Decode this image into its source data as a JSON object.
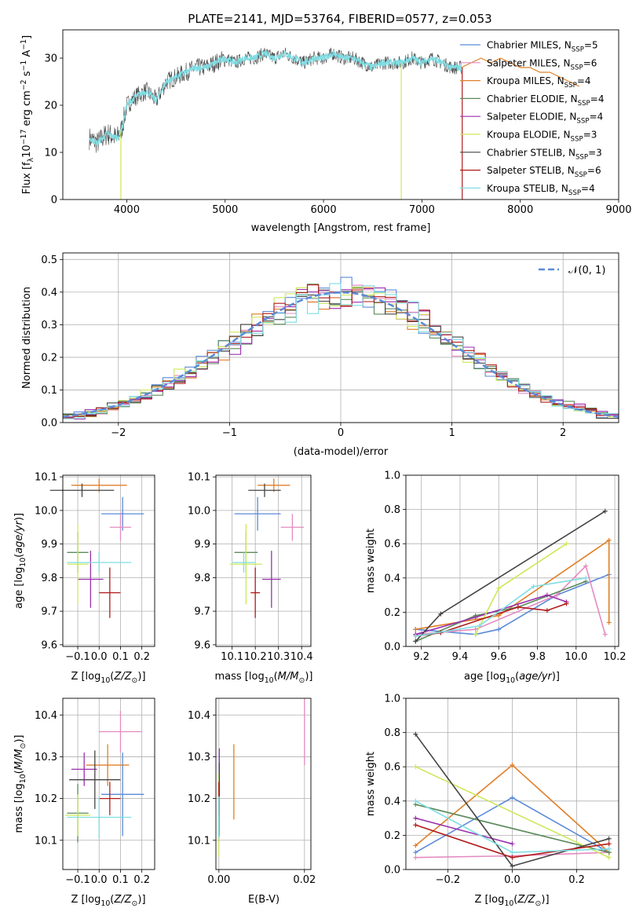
{
  "colors": {
    "Chabrier MILES": "#5b8ad8",
    "Salpeter MILES": "#e38bc0",
    "Kroupa MILES": "#e07f28",
    "Chabrier ELODIE": "#5a8a5a",
    "Salpeter ELODIE": "#9b2fae",
    "Kroupa ELODIE": "#cde85a",
    "Chabrier STELIB": "#444444",
    "Salpeter STELIB": "#b11a1a",
    "Kroupa STELIB": "#7fdde3",
    "normal": "#5b8ad8",
    "grid": "#b0b0b0"
  },
  "chart_data": [
    {
      "id": "spectrum",
      "type": "line",
      "title": "PLATE=2141, MJD=53764, FIBERID=0577, z=0.053",
      "xlabel": "wavelength [Angstrom, rest frame]",
      "ylabel": "Flux [f",
      "ylabel_parts": [
        "Flux [f",
        "λ",
        "10",
        "−17",
        " erg cm",
        "−2",
        " s",
        "−1",
        " A",
        "−1",
        "]"
      ],
      "xlim": [
        3350,
        9000
      ],
      "ylim": [
        0,
        36
      ],
      "xticks": [
        4000,
        5000,
        6000,
        7000,
        8000,
        9000
      ],
      "yticks": [
        0,
        10,
        20,
        30
      ],
      "grid": false,
      "legend_placement": "upper-right",
      "x": [
        3620,
        3700,
        3800,
        3900,
        3950,
        4000,
        4100,
        4200,
        4300,
        4400,
        4500,
        4600,
        4700,
        4800,
        4900,
        5000,
        5100,
        5200,
        5300,
        5400,
        5500,
        5600,
        5700,
        5800,
        5900,
        6000,
        6100,
        6200,
        6300,
        6400,
        6500,
        6600,
        6700,
        6800,
        6900,
        7000,
        7100,
        7200,
        7300,
        7400
      ],
      "y": [
        13,
        12,
        14,
        13,
        15,
        20,
        22,
        23,
        21,
        25,
        26,
        27,
        28,
        28,
        29,
        30,
        29,
        30,
        30,
        31,
        30,
        31,
        30,
        29,
        30,
        30,
        31,
        30,
        30,
        29,
        28,
        29,
        29,
        29,
        30,
        29,
        30,
        29,
        28,
        28
      ],
      "model_x": [
        7400,
        7500,
        7600,
        7700,
        7800,
        7900,
        8000,
        8100,
        8200,
        8300,
        8400,
        8500,
        8600
      ],
      "model_y": [
        28,
        29,
        30,
        29,
        30,
        29,
        28,
        28,
        27,
        27,
        26,
        25,
        24
      ],
      "series": [
        {
          "name": "Chabrier MILES",
          "nssp": "5"
        },
        {
          "name": "Salpeter MILES",
          "nssp": "6"
        },
        {
          "name": "Kroupa MILES",
          "nssp": "4"
        },
        {
          "name": "Chabrier ELODIE",
          "nssp": "4"
        },
        {
          "name": "Salpeter ELODIE",
          "nssp": "4"
        },
        {
          "name": "Kroupa ELODIE",
          "nssp": "3"
        },
        {
          "name": "Chabrier STELIB",
          "nssp": "3"
        },
        {
          "name": "Salpeter STELIB",
          "nssp": "6"
        },
        {
          "name": "Kroupa STELIB",
          "nssp": "4"
        }
      ],
      "nssp_prefix": "N",
      "nssp_sub": "SSP"
    },
    {
      "id": "residuals",
      "type": "histogram",
      "xlabel": "(data-model)/error",
      "ylabel": "Normed distribution",
      "xlim": [
        -2.5,
        2.5
      ],
      "ylim": [
        0,
        0.52
      ],
      "xticks": [
        -2,
        -1,
        0,
        1,
        2
      ],
      "yticks": [
        0.0,
        0.1,
        0.2,
        0.3,
        0.4,
        0.5
      ],
      "grid": true,
      "legend": "𝒩(0, 1)",
      "legend_placement": "top-right",
      "bin_width": 0.1
    },
    {
      "id": "age_vs_Z",
      "type": "errorbar",
      "xlabel": "Z [log",
      "ylabel": "age  [log",
      "xlim": [
        -0.17,
        0.26
      ],
      "ylim": [
        9.595,
        10.105
      ],
      "xticks": [
        -0.1,
        0.0,
        0.1,
        0.2
      ],
      "xtick_labels": [
        "−0.1",
        "0.0",
        "0.1",
        "0.2"
      ],
      "yticks": [
        9.6,
        9.7,
        9.8,
        9.9,
        10.0,
        10.1
      ],
      "grid": true,
      "points": [
        {
          "name": "Chabrier MILES",
          "x": 0.11,
          "xerr": 0.1,
          "y": 9.99,
          "yerr": 0.05
        },
        {
          "name": "Salpeter MILES",
          "x": 0.1,
          "xerr": 0.05,
          "y": 9.95,
          "yerr": 0.04
        },
        {
          "name": "Kroupa MILES",
          "x": 0.0,
          "xerr": 0.13,
          "y": 10.075,
          "yerr": 0.02
        },
        {
          "name": "Chabrier ELODIE",
          "x": -0.1,
          "xerr": 0.05,
          "y": 9.875,
          "yerr": 0.06
        },
        {
          "name": "Salpeter ELODIE",
          "x": -0.04,
          "xerr": 0.06,
          "y": 9.795,
          "yerr": 0.085
        },
        {
          "name": "Kroupa ELODIE",
          "x": -0.1,
          "xerr": 0.05,
          "y": 9.84,
          "yerr": 0.12
        },
        {
          "name": "Chabrier STELIB",
          "x": -0.08,
          "xerr": 0.15,
          "y": 10.06,
          "yerr": 0.02
        },
        {
          "name": "Salpeter STELIB",
          "x": 0.05,
          "xerr": 0.05,
          "y": 9.755,
          "yerr": 0.075
        },
        {
          "name": "Kroupa STELIB",
          "x": 0.0,
          "xerr": 0.15,
          "y": 9.845,
          "yerr": 0.03
        }
      ]
    },
    {
      "id": "age_vs_mass",
      "type": "errorbar",
      "xlabel": "mass [log",
      "xlim": [
        10.03,
        10.44
      ],
      "ylim": [
        9.595,
        10.105
      ],
      "xticks": [
        10.1,
        10.2,
        10.3,
        10.4
      ],
      "yticks": [
        9.6,
        9.7,
        9.8,
        9.9,
        10.0,
        10.1
      ],
      "grid": true,
      "points": [
        {
          "name": "Chabrier MILES",
          "x": 10.21,
          "xerr": 0.1,
          "y": 9.99,
          "yerr": 0.05
        },
        {
          "name": "Salpeter MILES",
          "x": 10.36,
          "xerr": 0.05,
          "y": 9.95,
          "yerr": 0.04
        },
        {
          "name": "Kroupa MILES",
          "x": 10.28,
          "xerr": 0.07,
          "y": 10.075,
          "yerr": 0.02
        },
        {
          "name": "Chabrier ELODIE",
          "x": 10.16,
          "xerr": 0.05,
          "y": 9.875,
          "yerr": 0.06
        },
        {
          "name": "Salpeter ELODIE",
          "x": 10.27,
          "xerr": 0.04,
          "y": 9.795,
          "yerr": 0.085
        },
        {
          "name": "Kroupa ELODIE",
          "x": 10.16,
          "xerr": 0.07,
          "y": 9.84,
          "yerr": 0.12
        },
        {
          "name": "Chabrier STELIB",
          "x": 10.24,
          "xerr": 0.07,
          "y": 10.06,
          "yerr": 0.02
        },
        {
          "name": "Salpeter STELIB",
          "x": 10.2,
          "xerr": 0.02,
          "y": 9.755,
          "yerr": 0.075
        },
        {
          "name": "Kroupa STELIB",
          "x": 10.15,
          "xerr": 0.05,
          "y": 9.845,
          "yerr": 0.03
        }
      ]
    },
    {
      "id": "mass_weight_vs_age",
      "type": "line",
      "xlabel": "age  [log",
      "ylabel": "mass weight",
      "xlim": [
        9.12,
        10.22
      ],
      "ylim": [
        0,
        1.0
      ],
      "xticks": [
        9.2,
        9.4,
        9.6,
        9.8,
        10.0,
        10.2
      ],
      "yticks": [
        0.0,
        0.2,
        0.4,
        0.6,
        0.8,
        1.0
      ],
      "grid": true,
      "series": [
        {
          "name": "Chabrier MILES",
          "x": [
            9.17,
            9.48,
            9.6,
            9.9,
            10.17
          ],
          "y": [
            0.1,
            0.07,
            0.1,
            0.3,
            0.42
          ]
        },
        {
          "name": "Salpeter MILES",
          "x": [
            9.17,
            9.48,
            9.9,
            10.05,
            10.15
          ],
          "y": [
            0.07,
            0.1,
            0.3,
            0.47,
            0.07
          ]
        },
        {
          "name": "Kroupa MILES",
          "x": [
            9.17,
            9.6,
            10.17,
            10.17
          ],
          "y": [
            0.1,
            0.18,
            0.62,
            0.14
          ]
        },
        {
          "name": "Chabrier ELODIE",
          "x": [
            9.17,
            9.48,
            9.7,
            10.05
          ],
          "y": [
            0.03,
            0.18,
            0.23,
            0.38
          ]
        },
        {
          "name": "Salpeter ELODIE",
          "x": [
            9.17,
            9.48,
            9.85,
            9.95
          ],
          "y": [
            0.07,
            0.17,
            0.3,
            0.26
          ]
        },
        {
          "name": "Kroupa ELODIE",
          "x": [
            9.48,
            9.6,
            9.95
          ],
          "y": [
            0.07,
            0.34,
            0.6
          ]
        },
        {
          "name": "Chabrier STELIB",
          "x": [
            9.17,
            9.3,
            10.15
          ],
          "y": [
            0.03,
            0.19,
            0.79
          ]
        },
        {
          "name": "Salpeter STELIB",
          "x": [
            9.17,
            9.3,
            9.7,
            9.85,
            9.95
          ],
          "y": [
            0.06,
            0.08,
            0.23,
            0.21,
            0.25
          ]
        },
        {
          "name": "Kroupa STELIB",
          "x": [
            9.17,
            9.5,
            9.78,
            10.05
          ],
          "y": [
            0.06,
            0.12,
            0.35,
            0.4
          ]
        }
      ]
    },
    {
      "id": "mass_vs_Z",
      "type": "errorbar",
      "xlabel": "Z [log",
      "ylabel": "mass [log",
      "xlim": [
        -0.17,
        0.26
      ],
      "ylim": [
        10.03,
        10.44
      ],
      "xticks": [
        -0.1,
        0.0,
        0.1,
        0.2
      ],
      "xtick_labels": [
        "−0.1",
        "0.0",
        "0.1",
        "0.2"
      ],
      "yticks": [
        10.1,
        10.2,
        10.3,
        10.4
      ],
      "grid": true,
      "points": [
        {
          "name": "Chabrier MILES",
          "x": 0.11,
          "xerr": 0.1,
          "y": 10.21,
          "yerr": 0.1
        },
        {
          "name": "Salpeter MILES",
          "x": 0.1,
          "xerr": 0.1,
          "y": 10.36,
          "yerr": 0.05
        },
        {
          "name": "Kroupa MILES",
          "x": 0.04,
          "xerr": 0.1,
          "y": 10.28,
          "yerr": 0.05
        },
        {
          "name": "Chabrier ELODIE",
          "x": -0.1,
          "xerr": 0.05,
          "y": 10.165,
          "yerr": 0.07
        },
        {
          "name": "Salpeter ELODIE",
          "x": -0.07,
          "xerr": 0.06,
          "y": 10.27,
          "yerr": 0.04
        },
        {
          "name": "Kroupa ELODIE",
          "x": -0.1,
          "xerr": 0.06,
          "y": 10.16,
          "yerr": 0.05
        },
        {
          "name": "Chabrier STELIB",
          "x": -0.02,
          "xerr": 0.12,
          "y": 10.245,
          "yerr": 0.07
        },
        {
          "name": "Salpeter STELIB",
          "x": 0.05,
          "xerr": 0.05,
          "y": 10.2,
          "yerr": 0.04
        },
        {
          "name": "Kroupa STELIB",
          "x": 0.0,
          "xerr": 0.15,
          "y": 10.155,
          "yerr": 0.05
        }
      ]
    },
    {
      "id": "mass_vs_ebv",
      "type": "errorbar",
      "xlabel": "E(B-V)",
      "xlim": [
        -0.0007,
        0.0215
      ],
      "ylim": [
        10.03,
        10.44
      ],
      "xticks": [
        0.0,
        0.02
      ],
      "xtick_labels": [
        "0.00",
        "0.02"
      ],
      "yticks": [
        10.1,
        10.2,
        10.3,
        10.4
      ],
      "grid": true,
      "points": [
        {
          "name": "Chabrier MILES",
          "x": 0.0001,
          "y": 10.21,
          "yerr": 0.1
        },
        {
          "name": "Salpeter MILES",
          "x": 0.02,
          "y": 10.36,
          "yerr": 0.08
        },
        {
          "name": "Kroupa MILES",
          "x": 0.0035,
          "y": 10.24,
          "yerr": 0.09
        },
        {
          "name": "Chabrier ELODIE",
          "x": 0.0,
          "y": 10.165,
          "yerr": 0.07
        },
        {
          "name": "Salpeter ELODIE",
          "x": 0.0001,
          "y": 10.27,
          "yerr": 0.05
        },
        {
          "name": "Kroupa ELODIE",
          "x": 0.0,
          "y": 10.16,
          "yerr": 0.1
        },
        {
          "name": "Chabrier STELIB",
          "x": 0.0001,
          "y": 10.245,
          "yerr": 0.04
        },
        {
          "name": "Salpeter STELIB",
          "x": 0.0,
          "y": 10.2,
          "yerr": 0.04
        },
        {
          "name": "Kroupa STELIB",
          "x": 0.0,
          "y": 10.155,
          "yerr": 0.05
        }
      ]
    },
    {
      "id": "mass_weight_vs_Z",
      "type": "line",
      "xlabel": "Z [log",
      "ylabel": "mass weight",
      "xlim": [
        -0.33,
        0.33
      ],
      "ylim": [
        0,
        1.0
      ],
      "xticks": [
        -0.2,
        0.0,
        0.2
      ],
      "xtick_labels": [
        "−0.2",
        "0.0",
        "0.2"
      ],
      "yticks": [
        0.0,
        0.2,
        0.4,
        0.6,
        0.8,
        1.0
      ],
      "grid": true,
      "series": [
        {
          "name": "Chabrier MILES",
          "x": [
            -0.3,
            0.0,
            0.3
          ],
          "y": [
            0.1,
            0.42,
            0.1
          ]
        },
        {
          "name": "Salpeter MILES",
          "x": [
            -0.3,
            0.0,
            0.3
          ],
          "y": [
            0.07,
            0.08,
            0.1
          ]
        },
        {
          "name": "Kroupa MILES",
          "x": [
            -0.3,
            0.0,
            0.3
          ],
          "y": [
            0.14,
            0.61,
            0.1
          ]
        },
        {
          "name": "Chabrier ELODIE",
          "x": [
            -0.3,
            0.3
          ],
          "y": [
            0.38,
            0.1
          ]
        },
        {
          "name": "Salpeter ELODIE",
          "x": [
            -0.3,
            0.0
          ],
          "y": [
            0.3,
            0.15
          ]
        },
        {
          "name": "Kroupa ELODIE",
          "x": [
            -0.3,
            0.3
          ],
          "y": [
            0.6,
            0.07
          ]
        },
        {
          "name": "Chabrier STELIB",
          "x": [
            -0.3,
            0.0,
            0.3
          ],
          "y": [
            0.79,
            0.02,
            0.18
          ]
        },
        {
          "name": "Salpeter STELIB",
          "x": [
            -0.3,
            0.0,
            0.3
          ],
          "y": [
            0.26,
            0.07,
            0.15
          ]
        },
        {
          "name": "Kroupa STELIB",
          "x": [
            -0.3,
            0.0,
            0.3
          ],
          "y": [
            0.4,
            0.1,
            0.12
          ]
        }
      ]
    }
  ]
}
